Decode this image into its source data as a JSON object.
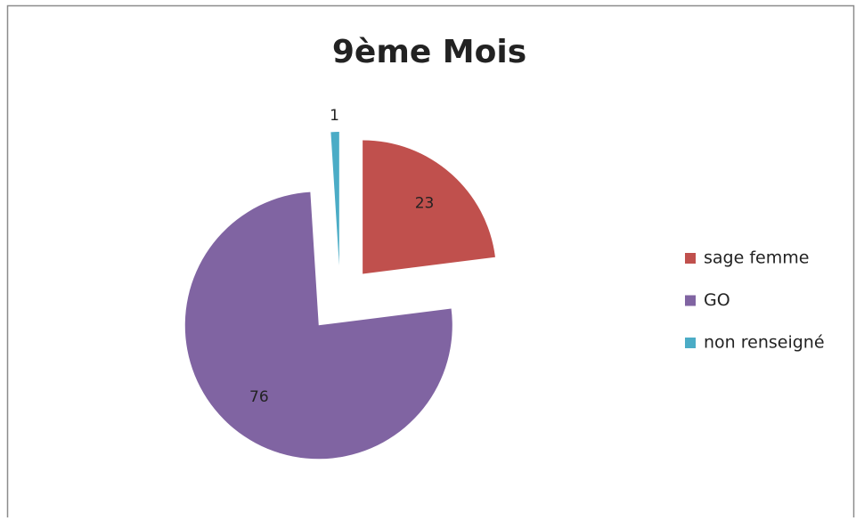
{
  "chart_data": {
    "type": "pie",
    "title": "9ème Mois",
    "categories": [
      "sage femme",
      "GO",
      "non renseigné"
    ],
    "values": [
      23,
      76,
      1
    ],
    "colors": [
      "#c0504d",
      "#8064a2",
      "#4bacc6"
    ],
    "legend": "right",
    "exploded": true
  }
}
